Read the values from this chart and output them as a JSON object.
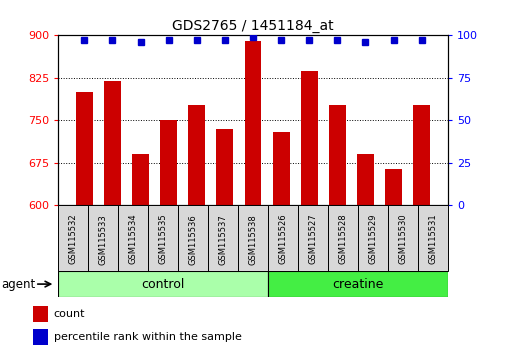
{
  "title": "GDS2765 / 1451184_at",
  "samples": [
    "GSM115532",
    "GSM115533",
    "GSM115534",
    "GSM115535",
    "GSM115536",
    "GSM115537",
    "GSM115538",
    "GSM115526",
    "GSM115527",
    "GSM115528",
    "GSM115529",
    "GSM115530",
    "GSM115531"
  ],
  "counts": [
    800,
    820,
    690,
    750,
    778,
    735,
    890,
    730,
    838,
    778,
    690,
    665,
    778
  ],
  "percentiles": [
    97,
    97,
    96,
    97,
    97,
    97,
    99,
    97,
    97,
    97,
    96,
    97,
    97
  ],
  "groups": [
    "control",
    "control",
    "control",
    "control",
    "control",
    "control",
    "control",
    "creatine",
    "creatine",
    "creatine",
    "creatine",
    "creatine",
    "creatine"
  ],
  "control_n": 7,
  "creatine_n": 6,
  "group_colors": {
    "control": "#AAFFAA",
    "creatine": "#44EE44"
  },
  "bar_color": "#CC0000",
  "dot_color": "#0000CC",
  "ylim_left": [
    600,
    900
  ],
  "ylim_right": [
    0,
    100
  ],
  "yticks_left": [
    600,
    675,
    750,
    825,
    900
  ],
  "yticks_right": [
    0,
    25,
    50,
    75,
    100
  ],
  "legend_count": "count",
  "legend_pct": "percentile rank within the sample",
  "bar_width": 0.6,
  "cell_color": "#D8D8D8"
}
